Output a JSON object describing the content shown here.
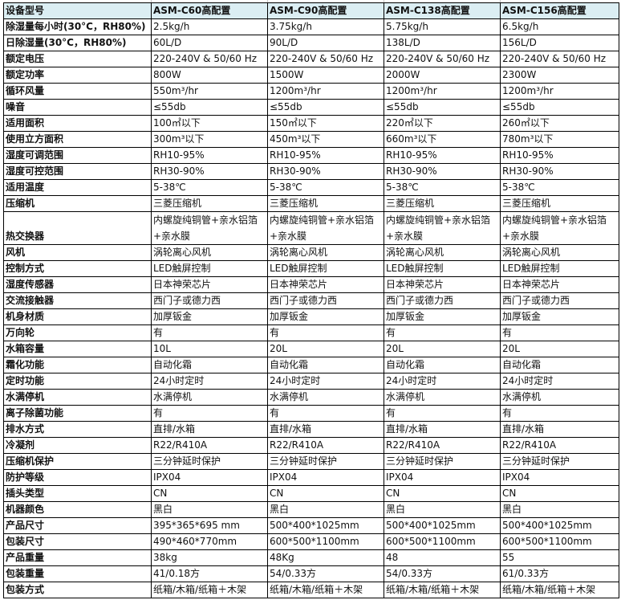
{
  "header": [
    "设备型号",
    "ASM-C60高配置",
    "ASM-C90高配置",
    "ASM-C138高配置",
    "ASM-C156高配置"
  ],
  "rows": [
    [
      "除湿量每小时(30°C，RH80%)",
      "2.5kg/h",
      "3.75kg/h",
      "5.75kg/h",
      "6.5kg/h"
    ],
    [
      "日除湿量(30°C，RH80%)",
      "60L/D",
      "90L/D",
      "138L/D",
      "156L/D"
    ],
    [
      "额定电压",
      "220-240V & 50/60 Hz",
      "220-240V & 50/60 Hz",
      "220-240V & 50/60 Hz",
      "220-240V & 50/60 Hz"
    ],
    [
      "额定功率",
      "800W",
      "1500W",
      "2000W",
      "2300W"
    ],
    [
      "循环风量",
      "550m³/hr",
      "1200m³/hr",
      "1200m³/hr",
      "1200m³/hr"
    ],
    [
      "噪音",
      "≤55db",
      "≤55db",
      "≤55db",
      "≤55db"
    ],
    [
      "适用面积",
      "100㎡以下",
      "150㎡以下",
      "220㎡以下",
      "260㎡以下"
    ],
    [
      "使用立方面积",
      "300m³以下",
      "450m³以下",
      "660m³以下",
      "780m³以下"
    ],
    [
      "湿度可调范围",
      "RH10-95%",
      "RH10-95%",
      "RH10-95%",
      "RH10-95%"
    ],
    [
      "湿度可控范围",
      "RH30-90%",
      "RH30-90%",
      "RH30-90%",
      "RH30-90%"
    ],
    [
      "适用温度",
      "5-38℃",
      "5-38℃",
      "5-38℃",
      "5-38℃"
    ],
    [
      "压缩机",
      "三菱压缩机",
      "三菱压缩机",
      "三菱压缩机",
      "三菱压缩机"
    ],
    [
      "热交换器",
      "内螺旋纯铜管+亲水铝箔+亲水膜",
      "内螺旋纯铜管+亲水铝箔+亲水膜",
      "内螺旋纯铜管+亲水铝箔+亲水膜",
      "内螺旋纯铜管+亲水铝箔+亲水膜"
    ],
    [
      "风机",
      "涡轮离心风机",
      "涡轮离心风机",
      "涡轮离心风机",
      "涡轮离心风机"
    ],
    [
      "控制方式",
      "LED触屏控制",
      "LED触屏控制",
      "LED触屏控制",
      "LED触屏控制"
    ],
    [
      "湿度传感器",
      "日本神荣芯片",
      "日本神荣芯片",
      "日本神荣芯片",
      "日本神荣芯片"
    ],
    [
      "交流接触器",
      "西门子或德力西",
      "西门子或德力西",
      "西门子或德力西",
      "西门子或德力西"
    ],
    [
      "机身材质",
      "加厚钣金",
      "加厚钣金",
      "加厚钣金",
      "加厚钣金"
    ],
    [
      "万向轮",
      "有",
      "有",
      "有",
      "有"
    ],
    [
      "水箱容量",
      "10L",
      "20L",
      "20L",
      "20L"
    ],
    [
      "霜化功能",
      "自动化霜",
      "自动化霜",
      "自动化霜",
      "自动化霜"
    ],
    [
      "定时功能",
      "24小时定时",
      "24小时定时",
      "24小时定时",
      "24小时定时"
    ],
    [
      "水满停机",
      "水满停机",
      "水满停机",
      "水满停机",
      "水满停机"
    ],
    [
      "离子除菌功能",
      "有",
      "有",
      "有",
      "有"
    ],
    [
      "排水方式",
      "直排/水箱",
      "直排/水箱",
      "直排/水箱",
      "直排/水箱"
    ],
    [
      "冷凝剂",
      "R22/R410A",
      "R22/R410A",
      "R22/R410A",
      "R22/R410A"
    ],
    [
      "压缩机保护",
      "三分钟延时保护",
      "三分钟延时保护",
      "三分钟延时保护",
      "三分钟延时保护"
    ],
    [
      "防护等级",
      "IPX04",
      "IPX04",
      "IPX04",
      "IPX04"
    ],
    [
      "插头类型",
      "CN",
      "CN",
      "CN",
      "CN"
    ],
    [
      "机器颜色",
      "黑白",
      "黑白",
      "黑白",
      "黑白"
    ],
    [
      "产品尺寸",
      "395*365*695 mm",
      "500*400*1025mm",
      "500*400*1025mm",
      "500*400*1025mm"
    ],
    [
      "包装尺寸",
      "490*460*770mm",
      "600*500*1100mm",
      "600*500*1100mm",
      "600*500*1100mm"
    ],
    [
      "产品重量",
      "38kg",
      "48Kg",
      "48",
      "55"
    ],
    [
      "包装重量",
      "41/0.18方",
      "54/0.33方",
      "54/0.33方",
      "61/0.33方"
    ],
    [
      "包装方式",
      "纸箱/木箱/纸箱＋木架",
      "纸箱/木箱/纸箱＋木架",
      "纸箱/木箱/纸箱＋木架",
      "纸箱/木箱/纸箱＋木架"
    ]
  ],
  "colors": {
    "header_bg": "#dbeef3",
    "border": "#000000"
  }
}
